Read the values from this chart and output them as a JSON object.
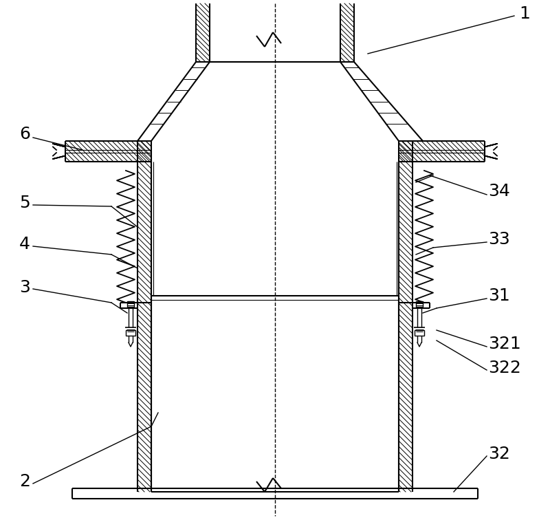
{
  "bg_color": "#ffffff",
  "line_color": "#000000",
  "figsize": [
    8.0,
    7.56
  ],
  "dpi": 100,
  "label_fontsize": 18
}
